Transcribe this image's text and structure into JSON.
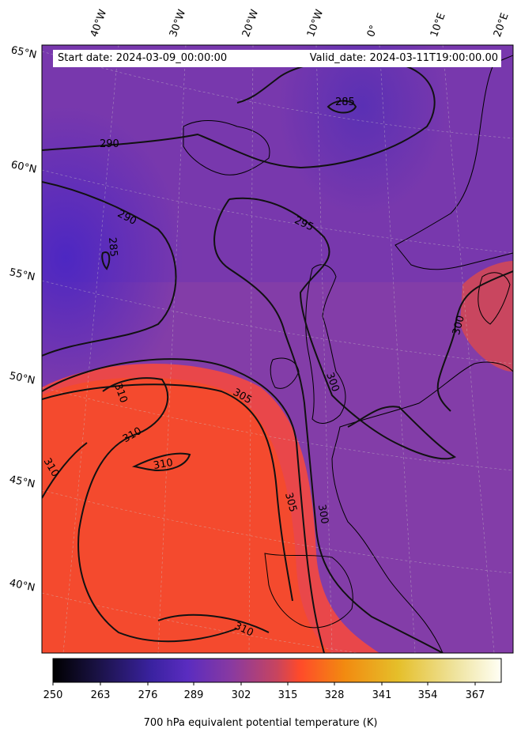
{
  "header": {
    "start_date": "Start date: 2024-03-09_00:00:00",
    "valid_date": "Valid_date: 2024-03-11T19:00:00.00"
  },
  "map": {
    "latitude_labels": [
      "65°N",
      "60°N",
      "55°N",
      "50°N",
      "45°N",
      "40°N"
    ],
    "longitude_labels": [
      "40°W",
      "30°W",
      "20°W",
      "10°W",
      "0°",
      "10°E",
      "20°E"
    ],
    "contour_labels": [
      "285",
      "290",
      "290",
      "285",
      "295",
      "300",
      "300",
      "305",
      "310",
      "310",
      "310",
      "310",
      "305",
      "300",
      "310"
    ]
  },
  "colorbar": {
    "ticks": [
      "250",
      "263",
      "276",
      "289",
      "302",
      "315",
      "328",
      "341",
      "354",
      "367"
    ],
    "label": "700 hPa equivalent potential temperature (K)",
    "colormap_stops": [
      "#000000",
      "#1a1245",
      "#3a22a0",
      "#5a2cc0",
      "#8a3aa0",
      "#c8445e",
      "#ff4a2a",
      "#f28a10",
      "#e5bf2a",
      "#efe4a0",
      "#fffff5"
    ]
  },
  "colors": {
    "warm_air": "#f44a2e",
    "mid_air": "#8b3fa2",
    "cold_air": "#5a30b4"
  }
}
